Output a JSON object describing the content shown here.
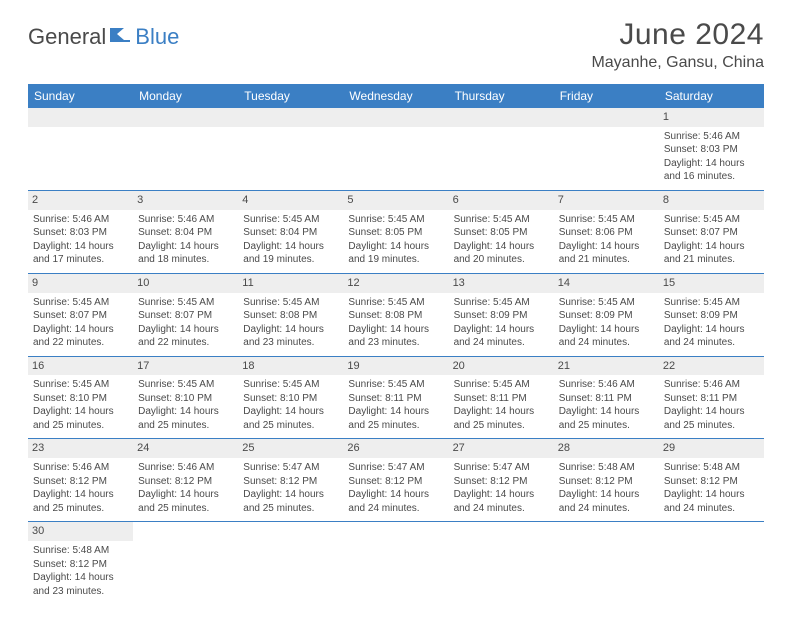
{
  "logo": {
    "part1": "General",
    "part2": "Blue"
  },
  "title": "June 2024",
  "location": "Mayanhe, Gansu, China",
  "header_bg": "#3b7fc4",
  "text_color": "#4a4a4a",
  "daynum_bg": "#eeeeee",
  "days": [
    "Sunday",
    "Monday",
    "Tuesday",
    "Wednesday",
    "Thursday",
    "Friday",
    "Saturday"
  ],
  "weeks": [
    [
      null,
      null,
      null,
      null,
      null,
      null,
      {
        "n": "1",
        "sr": "Sunrise: 5:46 AM",
        "ss": "Sunset: 8:03 PM",
        "d1": "Daylight: 14 hours",
        "d2": "and 16 minutes."
      }
    ],
    [
      {
        "n": "2",
        "sr": "Sunrise: 5:46 AM",
        "ss": "Sunset: 8:03 PM",
        "d1": "Daylight: 14 hours",
        "d2": "and 17 minutes."
      },
      {
        "n": "3",
        "sr": "Sunrise: 5:46 AM",
        "ss": "Sunset: 8:04 PM",
        "d1": "Daylight: 14 hours",
        "d2": "and 18 minutes."
      },
      {
        "n": "4",
        "sr": "Sunrise: 5:45 AM",
        "ss": "Sunset: 8:04 PM",
        "d1": "Daylight: 14 hours",
        "d2": "and 19 minutes."
      },
      {
        "n": "5",
        "sr": "Sunrise: 5:45 AM",
        "ss": "Sunset: 8:05 PM",
        "d1": "Daylight: 14 hours",
        "d2": "and 19 minutes."
      },
      {
        "n": "6",
        "sr": "Sunrise: 5:45 AM",
        "ss": "Sunset: 8:05 PM",
        "d1": "Daylight: 14 hours",
        "d2": "and 20 minutes."
      },
      {
        "n": "7",
        "sr": "Sunrise: 5:45 AM",
        "ss": "Sunset: 8:06 PM",
        "d1": "Daylight: 14 hours",
        "d2": "and 21 minutes."
      },
      {
        "n": "8",
        "sr": "Sunrise: 5:45 AM",
        "ss": "Sunset: 8:07 PM",
        "d1": "Daylight: 14 hours",
        "d2": "and 21 minutes."
      }
    ],
    [
      {
        "n": "9",
        "sr": "Sunrise: 5:45 AM",
        "ss": "Sunset: 8:07 PM",
        "d1": "Daylight: 14 hours",
        "d2": "and 22 minutes."
      },
      {
        "n": "10",
        "sr": "Sunrise: 5:45 AM",
        "ss": "Sunset: 8:07 PM",
        "d1": "Daylight: 14 hours",
        "d2": "and 22 minutes."
      },
      {
        "n": "11",
        "sr": "Sunrise: 5:45 AM",
        "ss": "Sunset: 8:08 PM",
        "d1": "Daylight: 14 hours",
        "d2": "and 23 minutes."
      },
      {
        "n": "12",
        "sr": "Sunrise: 5:45 AM",
        "ss": "Sunset: 8:08 PM",
        "d1": "Daylight: 14 hours",
        "d2": "and 23 minutes."
      },
      {
        "n": "13",
        "sr": "Sunrise: 5:45 AM",
        "ss": "Sunset: 8:09 PM",
        "d1": "Daylight: 14 hours",
        "d2": "and 24 minutes."
      },
      {
        "n": "14",
        "sr": "Sunrise: 5:45 AM",
        "ss": "Sunset: 8:09 PM",
        "d1": "Daylight: 14 hours",
        "d2": "and 24 minutes."
      },
      {
        "n": "15",
        "sr": "Sunrise: 5:45 AM",
        "ss": "Sunset: 8:09 PM",
        "d1": "Daylight: 14 hours",
        "d2": "and 24 minutes."
      }
    ],
    [
      {
        "n": "16",
        "sr": "Sunrise: 5:45 AM",
        "ss": "Sunset: 8:10 PM",
        "d1": "Daylight: 14 hours",
        "d2": "and 25 minutes."
      },
      {
        "n": "17",
        "sr": "Sunrise: 5:45 AM",
        "ss": "Sunset: 8:10 PM",
        "d1": "Daylight: 14 hours",
        "d2": "and 25 minutes."
      },
      {
        "n": "18",
        "sr": "Sunrise: 5:45 AM",
        "ss": "Sunset: 8:10 PM",
        "d1": "Daylight: 14 hours",
        "d2": "and 25 minutes."
      },
      {
        "n": "19",
        "sr": "Sunrise: 5:45 AM",
        "ss": "Sunset: 8:11 PM",
        "d1": "Daylight: 14 hours",
        "d2": "and 25 minutes."
      },
      {
        "n": "20",
        "sr": "Sunrise: 5:45 AM",
        "ss": "Sunset: 8:11 PM",
        "d1": "Daylight: 14 hours",
        "d2": "and 25 minutes."
      },
      {
        "n": "21",
        "sr": "Sunrise: 5:46 AM",
        "ss": "Sunset: 8:11 PM",
        "d1": "Daylight: 14 hours",
        "d2": "and 25 minutes."
      },
      {
        "n": "22",
        "sr": "Sunrise: 5:46 AM",
        "ss": "Sunset: 8:11 PM",
        "d1": "Daylight: 14 hours",
        "d2": "and 25 minutes."
      }
    ],
    [
      {
        "n": "23",
        "sr": "Sunrise: 5:46 AM",
        "ss": "Sunset: 8:12 PM",
        "d1": "Daylight: 14 hours",
        "d2": "and 25 minutes."
      },
      {
        "n": "24",
        "sr": "Sunrise: 5:46 AM",
        "ss": "Sunset: 8:12 PM",
        "d1": "Daylight: 14 hours",
        "d2": "and 25 minutes."
      },
      {
        "n": "25",
        "sr": "Sunrise: 5:47 AM",
        "ss": "Sunset: 8:12 PM",
        "d1": "Daylight: 14 hours",
        "d2": "and 25 minutes."
      },
      {
        "n": "26",
        "sr": "Sunrise: 5:47 AM",
        "ss": "Sunset: 8:12 PM",
        "d1": "Daylight: 14 hours",
        "d2": "and 24 minutes."
      },
      {
        "n": "27",
        "sr": "Sunrise: 5:47 AM",
        "ss": "Sunset: 8:12 PM",
        "d1": "Daylight: 14 hours",
        "d2": "and 24 minutes."
      },
      {
        "n": "28",
        "sr": "Sunrise: 5:48 AM",
        "ss": "Sunset: 8:12 PM",
        "d1": "Daylight: 14 hours",
        "d2": "and 24 minutes."
      },
      {
        "n": "29",
        "sr": "Sunrise: 5:48 AM",
        "ss": "Sunset: 8:12 PM",
        "d1": "Daylight: 14 hours",
        "d2": "and 24 minutes."
      }
    ],
    [
      {
        "n": "30",
        "sr": "Sunrise: 5:48 AM",
        "ss": "Sunset: 8:12 PM",
        "d1": "Daylight: 14 hours",
        "d2": "and 23 minutes."
      },
      null,
      null,
      null,
      null,
      null,
      null
    ]
  ]
}
